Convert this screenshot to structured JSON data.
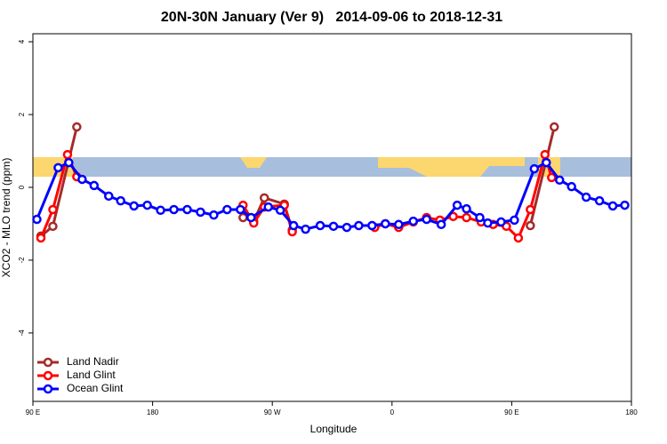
{
  "chart_data": {
    "type": "line",
    "title": "20N-30N January (Ver 9)   2014-09-06 to 2018-12-31",
    "x_label": "Longitude",
    "y_label": "XCO2 - MLO trend (ppm)",
    "xlim": [
      90,
      540
    ],
    "ylim": [
      -5.88,
      4.22
    ],
    "xticks": [
      {
        "value": 90,
        "label": "90 E"
      },
      {
        "value": 180,
        "label": "180"
      },
      {
        "value": 270,
        "label": "90 W"
      },
      {
        "value": 360,
        "label": "0"
      },
      {
        "value": 450,
        "label": "90 E"
      },
      {
        "value": 540,
        "label": "180"
      }
    ],
    "yticks": [
      -4,
      -2,
      0,
      2,
      4
    ],
    "legend": "bottom-left",
    "series": [
      {
        "name": "Land Nadir",
        "color": "#a52a2a",
        "x": [
          96,
          105,
          123,
          null,
          248,
          256,
          264,
          279,
          285,
          null,
          464,
          482
        ],
        "values": [
          -1.34,
          -1.07,
          1.66,
          null,
          -0.83,
          -0.93,
          -0.29,
          -0.46,
          -1.17,
          null,
          -1.05,
          1.66
        ]
      },
      {
        "name": "Land Glint",
        "color": "#ff0000",
        "x": [
          96,
          105,
          116,
          123,
          null,
          248,
          256,
          264,
          279,
          285,
          null,
          347,
          355,
          365,
          376,
          386,
          396,
          406,
          416,
          427,
          436,
          446,
          455,
          464,
          475,
          480
        ],
        "values": [
          -1.39,
          -0.61,
          0.9,
          0.29,
          null,
          -0.49,
          -0.98,
          -0.54,
          -0.49,
          -1.22,
          null,
          -1.1,
          -1.0,
          -1.1,
          -0.95,
          -0.83,
          -0.9,
          -0.8,
          -0.83,
          -0.95,
          -1.02,
          -1.07,
          -1.39,
          -0.61,
          0.9,
          0.27
        ]
      },
      {
        "name": "Ocean Glint",
        "color": "#0000ff",
        "x": [
          93,
          109,
          117,
          127,
          136,
          147,
          156,
          166,
          176,
          186,
          196,
          206,
          216,
          226,
          236,
          246,
          254,
          267,
          276,
          286,
          295,
          306,
          316,
          326,
          335,
          345,
          355,
          365,
          376,
          386,
          397,
          409,
          416,
          426,
          432,
          442,
          452,
          467,
          476,
          486,
          495,
          506,
          516,
          526,
          535
        ],
        "values": [
          -0.88,
          0.54,
          0.68,
          0.22,
          0.05,
          -0.24,
          -0.37,
          -0.51,
          -0.49,
          -0.63,
          -0.61,
          -0.61,
          -0.68,
          -0.76,
          -0.61,
          -0.61,
          -0.83,
          -0.54,
          -0.63,
          -1.05,
          -1.15,
          -1.05,
          -1.07,
          -1.1,
          -1.05,
          -1.05,
          -1.0,
          -1.02,
          -0.93,
          -0.88,
          -1.02,
          -0.49,
          -0.59,
          -0.83,
          -0.98,
          -0.95,
          -0.9,
          0.51,
          0.68,
          0.2,
          0.02,
          -0.27,
          -0.37,
          -0.51,
          -0.49
        ]
      }
    ]
  }
}
